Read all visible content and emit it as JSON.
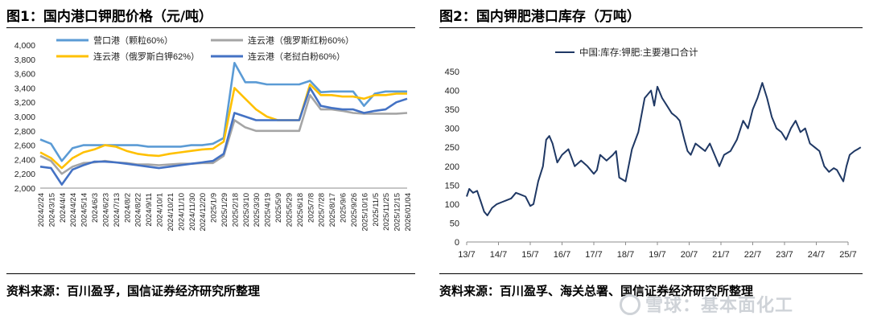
{
  "figure1": {
    "title": "图1：国内港口钾肥价格（元/吨）",
    "source": "资料来源：百川盈孚，国信证券经济研究所整理"
  },
  "figure2": {
    "title": "图2：国内钾肥港口库存（万吨）",
    "source": "资料来源：百川盈孚、海关总署、国信证券经济研究所整理"
  },
  "watermark": "雪球：基本面化工",
  "chart_data": [
    {
      "type": "line",
      "title": "图1：国内港口钾肥价格（元/吨）",
      "ylim": [
        2000,
        4000
      ],
      "yticks": [
        "2,000",
        "2,200",
        "2,400",
        "2,600",
        "2,800",
        "3,000",
        "3,200",
        "3,400",
        "3,600",
        "3,800",
        "4,000"
      ],
      "categories": [
        "2024/2/24",
        "2024/3/15",
        "2024/4/4",
        "2024/4/24",
        "2024/5/14",
        "2024/6/3",
        "2024/6/23",
        "2024/7/13",
        "2024/8/2",
        "2024/8/22",
        "2024/9/11",
        "2024/10/1",
        "2024/10/21",
        "2024/11/10",
        "2024/11/30",
        "2024/12/20",
        "2025/1/9",
        "2025/1/29",
        "2025/2/18",
        "2025/3/10",
        "2025/3/30",
        "2025/4/19",
        "2025/5/9",
        "2025/5/29",
        "2025/6/18",
        "2025/7/8",
        "2025/7/28",
        "2025/8/17",
        "2025/9/6",
        "2025/9/26",
        "2025/10/16",
        "2025/11/5",
        "2025/11/25",
        "2025/12/15",
        "2026/01/04"
      ],
      "legend": "top",
      "grid": false,
      "series": [
        {
          "name": "营口港（颗粒60%）",
          "color": "#5b9bd5",
          "values": [
            2680,
            2620,
            2380,
            2560,
            2600,
            2600,
            2600,
            2600,
            2600,
            2600,
            2580,
            2580,
            2580,
            2580,
            2600,
            2600,
            2620,
            2700,
            3750,
            3480,
            3480,
            3450,
            3450,
            3450,
            3450,
            3500,
            3340,
            3350,
            3350,
            3350,
            3150,
            3320,
            3350,
            3350,
            3350
          ]
        },
        {
          "name": "连云港（俄罗斯红粉60%）",
          "color": "#a5a5a5",
          "values": [
            2450,
            2380,
            2200,
            2300,
            2350,
            2360,
            2380,
            2360,
            2350,
            2330,
            2330,
            2320,
            2330,
            2340,
            2340,
            2350,
            2350,
            2450,
            2950,
            2850,
            2800,
            2800,
            2800,
            2800,
            2800,
            3300,
            3100,
            3100,
            3080,
            3050,
            3040,
            3040,
            3040,
            3040,
            3050
          ]
        },
        {
          "name": "连云港（俄罗斯白钾62%）",
          "color": "#ffc000",
          "values": [
            2500,
            2420,
            2280,
            2420,
            2500,
            2540,
            2600,
            2580,
            2520,
            2480,
            2460,
            2450,
            2480,
            2500,
            2520,
            2540,
            2550,
            2650,
            3400,
            3250,
            3100,
            3000,
            2950,
            2950,
            2950,
            3450,
            3300,
            3300,
            3280,
            3280,
            3250,
            3300,
            3300,
            3320,
            3320
          ]
        },
        {
          "name": "连云港（老挝白粉60%）",
          "color": "#4472c4",
          "values": [
            2300,
            2280,
            2050,
            2260,
            2320,
            2370,
            2370,
            2360,
            2340,
            2320,
            2300,
            2280,
            2300,
            2320,
            2340,
            2360,
            2380,
            2480,
            3050,
            3000,
            2950,
            2950,
            2950,
            2950,
            2950,
            3400,
            3150,
            3120,
            3100,
            3100,
            3050,
            3080,
            3100,
            3200,
            3250
          ]
        }
      ]
    },
    {
      "type": "line",
      "title": "图2：国内钾肥港口库存（万吨）",
      "ylim": [
        0,
        450
      ],
      "yticks": [
        "0",
        "50",
        "100",
        "150",
        "200",
        "250",
        "300",
        "350",
        "400",
        "450"
      ],
      "xticks": [
        "13/7",
        "14/7",
        "15/7",
        "16/7",
        "17/7",
        "18/7",
        "19/7",
        "20/7",
        "21/7",
        "22/7",
        "23/7",
        "24/7",
        "25/7"
      ],
      "legend": "top",
      "grid": false,
      "series": [
        {
          "name": "中国:库存:钾肥:主要港口合计",
          "color": "#1f3864",
          "x": [
            0,
            0.08,
            0.2,
            0.33,
            0.45,
            0.55,
            0.65,
            0.8,
            0.95,
            1.1,
            1.25,
            1.4,
            1.55,
            1.7,
            1.85,
            2.0,
            2.1,
            2.25,
            2.4,
            2.5,
            2.6,
            2.7,
            2.85,
            3.0,
            3.2,
            3.4,
            3.6,
            3.8,
            4.0,
            4.1,
            4.2,
            4.4,
            4.6,
            4.7,
            4.8,
            5.0,
            5.2,
            5.4,
            5.6,
            5.8,
            5.9,
            6.0,
            6.15,
            6.3,
            6.45,
            6.6,
            6.7,
            6.85,
            6.95,
            7.05,
            7.2,
            7.35,
            7.5,
            7.65,
            7.8,
            7.95,
            8.1,
            8.3,
            8.5,
            8.7,
            8.85,
            9.0,
            9.15,
            9.3,
            9.45,
            9.6,
            9.75,
            9.9,
            10.05,
            10.2,
            10.35,
            10.5,
            10.65,
            10.8,
            10.95,
            11.1,
            11.25,
            11.4,
            11.55,
            11.65,
            11.75,
            11.85,
            11.95,
            12.05,
            12.2,
            12.3,
            12.4
          ],
          "values": [
            120,
            140,
            130,
            135,
            105,
            80,
            70,
            90,
            100,
            105,
            110,
            115,
            130,
            125,
            120,
            95,
            100,
            160,
            200,
            270,
            280,
            260,
            210,
            230,
            245,
            200,
            215,
            200,
            180,
            190,
            230,
            215,
            230,
            240,
            170,
            160,
            245,
            290,
            380,
            400,
            360,
            410,
            380,
            360,
            340,
            330,
            320,
            270,
            240,
            230,
            260,
            250,
            240,
            260,
            230,
            200,
            230,
            240,
            270,
            320,
            300,
            350,
            380,
            420,
            380,
            330,
            300,
            290,
            270,
            300,
            320,
            290,
            300,
            260,
            250,
            240,
            200,
            185,
            195,
            190,
            175,
            160,
            200,
            230,
            240,
            245,
            250
          ]
        }
      ]
    }
  ]
}
